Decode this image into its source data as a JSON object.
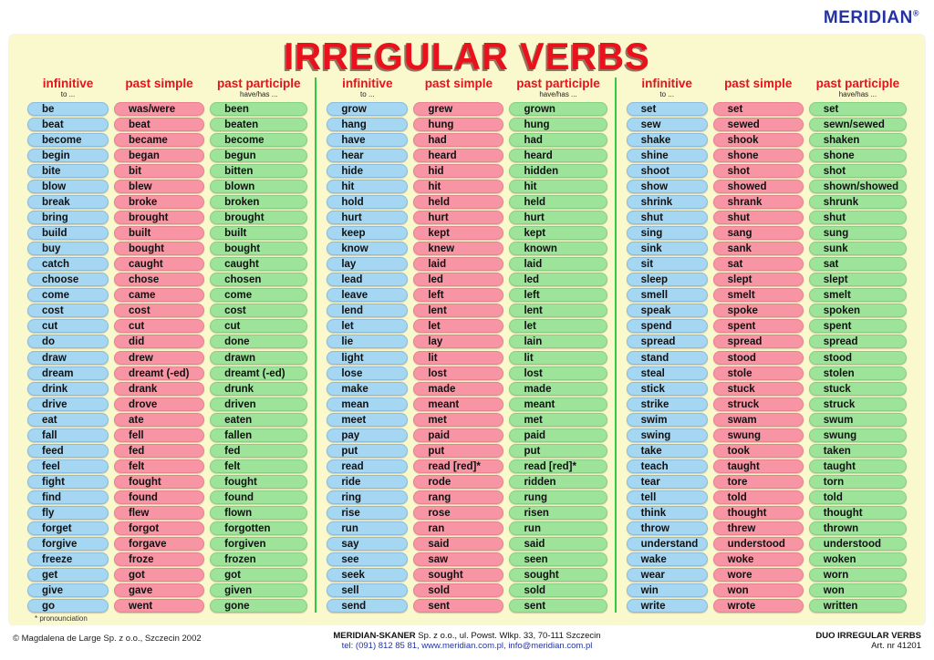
{
  "brand": {
    "logo_text": "MERIDIAN",
    "registered_mark": "®"
  },
  "title": "IRREGULAR VERBS",
  "column_headers": {
    "infinitive_label": "infinitive",
    "infinitive_sub": "to ...",
    "past_simple_label": "past simple",
    "past_participle_label": "past participle",
    "past_participle_sub": "have/has ..."
  },
  "colors": {
    "background": "#faf8cd",
    "pill_infinitive": "#a5d6f2",
    "pill_past_simple": "#f795a4",
    "pill_past_participle": "#9de49a",
    "accent_red": "#e8111c",
    "divider_green": "#2ecc44",
    "logo_blue": "#2433a0"
  },
  "footnote": "* pronounciation",
  "groups": [
    {
      "rows": [
        [
          "be",
          "was/were",
          "been"
        ],
        [
          "beat",
          "beat",
          "beaten"
        ],
        [
          "become",
          "became",
          "become"
        ],
        [
          "begin",
          "began",
          "begun"
        ],
        [
          "bite",
          "bit",
          "bitten"
        ],
        [
          "blow",
          "blew",
          "blown"
        ],
        [
          "break",
          "broke",
          "broken"
        ],
        [
          "bring",
          "brought",
          "brought"
        ],
        [
          "build",
          "built",
          "built"
        ],
        [
          "buy",
          "bought",
          "bought"
        ],
        [
          "catch",
          "caught",
          "caught"
        ],
        [
          "choose",
          "chose",
          "chosen"
        ],
        [
          "come",
          "came",
          "come"
        ],
        [
          "cost",
          "cost",
          "cost"
        ],
        [
          "cut",
          "cut",
          "cut"
        ],
        [
          "do",
          "did",
          "done"
        ],
        [
          "draw",
          "drew",
          "drawn"
        ],
        [
          "dream",
          "dreamt (-ed)",
          "dreamt (-ed)"
        ],
        [
          "drink",
          "drank",
          "drunk"
        ],
        [
          "drive",
          "drove",
          "driven"
        ],
        [
          "eat",
          "ate",
          "eaten"
        ],
        [
          "fall",
          "fell",
          "fallen"
        ],
        [
          "feed",
          "fed",
          "fed"
        ],
        [
          "feel",
          "felt",
          "felt"
        ],
        [
          "fight",
          "fought",
          "fought"
        ],
        [
          "find",
          "found",
          "found"
        ],
        [
          "fly",
          "flew",
          "flown"
        ],
        [
          "forget",
          "forgot",
          "forgotten"
        ],
        [
          "forgive",
          "forgave",
          "forgiven"
        ],
        [
          "freeze",
          "froze",
          "frozen"
        ],
        [
          "get",
          "got",
          "got"
        ],
        [
          "give",
          "gave",
          "given"
        ],
        [
          "go",
          "went",
          "gone"
        ]
      ]
    },
    {
      "rows": [
        [
          "grow",
          "grew",
          "grown"
        ],
        [
          "hang",
          "hung",
          "hung"
        ],
        [
          "have",
          "had",
          "had"
        ],
        [
          "hear",
          "heard",
          "heard"
        ],
        [
          "hide",
          "hid",
          "hidden"
        ],
        [
          "hit",
          "hit",
          "hit"
        ],
        [
          "hold",
          "held",
          "held"
        ],
        [
          "hurt",
          "hurt",
          "hurt"
        ],
        [
          "keep",
          "kept",
          "kept"
        ],
        [
          "know",
          "knew",
          "known"
        ],
        [
          "lay",
          "laid",
          "laid"
        ],
        [
          "lead",
          "led",
          "led"
        ],
        [
          "leave",
          "left",
          "left"
        ],
        [
          "lend",
          "lent",
          "lent"
        ],
        [
          "let",
          "let",
          "let"
        ],
        [
          "lie",
          "lay",
          "lain"
        ],
        [
          "light",
          "lit",
          "lit"
        ],
        [
          "lose",
          "lost",
          "lost"
        ],
        [
          "make",
          "made",
          "made"
        ],
        [
          "mean",
          "meant",
          "meant"
        ],
        [
          "meet",
          "met",
          "met"
        ],
        [
          "pay",
          "paid",
          "paid"
        ],
        [
          "put",
          "put",
          "put"
        ],
        [
          "read",
          "read [red]*",
          "read [red]*"
        ],
        [
          "ride",
          "rode",
          "ridden"
        ],
        [
          "ring",
          "rang",
          "rung"
        ],
        [
          "rise",
          "rose",
          "risen"
        ],
        [
          "run",
          "ran",
          "run"
        ],
        [
          "say",
          "said",
          "said"
        ],
        [
          "see",
          "saw",
          "seen"
        ],
        [
          "seek",
          "sought",
          "sought"
        ],
        [
          "sell",
          "sold",
          "sold"
        ],
        [
          "send",
          "sent",
          "sent"
        ]
      ]
    },
    {
      "rows": [
        [
          "set",
          "set",
          "set"
        ],
        [
          "sew",
          "sewed",
          "sewn/sewed"
        ],
        [
          "shake",
          "shook",
          "shaken"
        ],
        [
          "shine",
          "shone",
          "shone"
        ],
        [
          "shoot",
          "shot",
          "shot"
        ],
        [
          "show",
          "showed",
          "shown/showed"
        ],
        [
          "shrink",
          "shrank",
          "shrunk"
        ],
        [
          "shut",
          "shut",
          "shut"
        ],
        [
          "sing",
          "sang",
          "sung"
        ],
        [
          "sink",
          "sank",
          "sunk"
        ],
        [
          "sit",
          "sat",
          "sat"
        ],
        [
          "sleep",
          "slept",
          "slept"
        ],
        [
          "smell",
          "smelt",
          "smelt"
        ],
        [
          "speak",
          "spoke",
          "spoken"
        ],
        [
          "spend",
          "spent",
          "spent"
        ],
        [
          "spread",
          "spread",
          "spread"
        ],
        [
          "stand",
          "stood",
          "stood"
        ],
        [
          "steal",
          "stole",
          "stolen"
        ],
        [
          "stick",
          "stuck",
          "stuck"
        ],
        [
          "strike",
          "struck",
          "struck"
        ],
        [
          "swim",
          "swam",
          "swum"
        ],
        [
          "swing",
          "swung",
          "swung"
        ],
        [
          "take",
          "took",
          "taken"
        ],
        [
          "teach",
          "taught",
          "taught"
        ],
        [
          "tear",
          "tore",
          "torn"
        ],
        [
          "tell",
          "told",
          "told"
        ],
        [
          "think",
          "thought",
          "thought"
        ],
        [
          "throw",
          "threw",
          "thrown"
        ],
        [
          "understand",
          "understood",
          "understood"
        ],
        [
          "wake",
          "woke",
          "woken"
        ],
        [
          "wear",
          "wore",
          "worn"
        ],
        [
          "win",
          "won",
          "won"
        ],
        [
          "write",
          "wrote",
          "written"
        ]
      ]
    }
  ],
  "footer": {
    "copyright": "© Magdalena de Large Sp. z o.o., Szczecin 2002",
    "publisher_bold": "MERIDIAN-SKANER",
    "publisher_rest": " Sp. z o.o., ul. Powst. Wlkp. 33, 70-111 Szczecin",
    "contact_line": "tel: (091) 812 85 81, www.meridian.com.pl, info@meridian.com.pl",
    "product_name": "DUO IRREGULAR VERBS",
    "article_number": "Art. nr 41201"
  }
}
